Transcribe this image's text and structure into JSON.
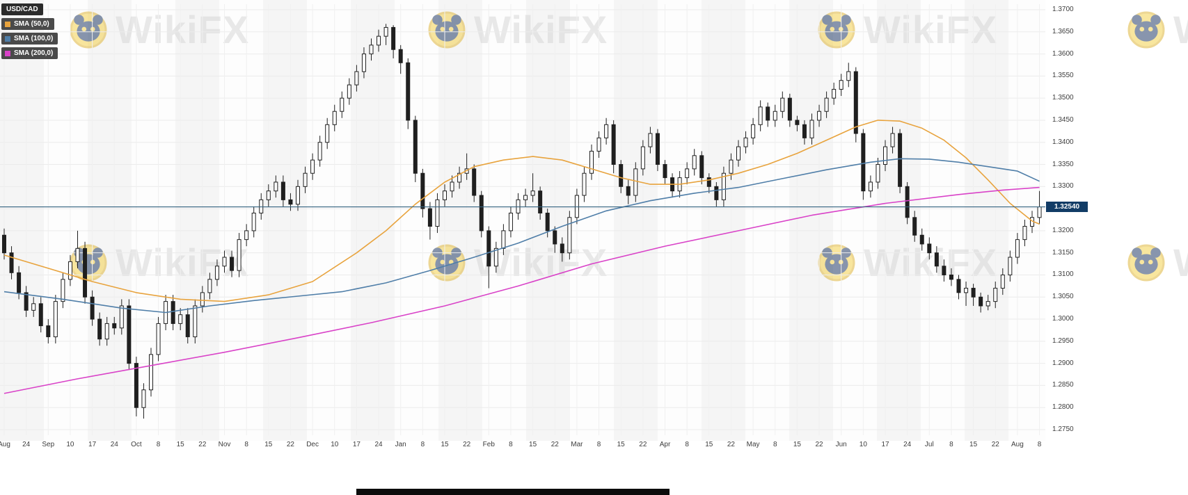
{
  "instrument": {
    "symbol": "USD/CAD"
  },
  "watermark": {
    "text": "WikiFX",
    "logo": "panda-icon"
  },
  "legend": {
    "items": [
      {
        "label": "USD/CAD",
        "color": "#2b2b2b"
      },
      {
        "label": "SMA (50,0)",
        "color": "#e8a33d"
      },
      {
        "label": "SMA (100,0)",
        "color": "#4f7ea8"
      },
      {
        "label": "SMA (200,0)",
        "color": "#d942c8"
      }
    ]
  },
  "price_axis": {
    "ticks": [
      "1.3700",
      "1.3650",
      "1.3600",
      "1.3550",
      "1.3500",
      "1.3450",
      "1.3400",
      "1.3350",
      "1.3300",
      "1.3250",
      "1.3200",
      "1.3150",
      "1.3100",
      "1.3050",
      "1.3000",
      "1.2950",
      "1.2900",
      "1.2850",
      "1.2800",
      "1.2750"
    ],
    "last_price_label": "1.32540"
  },
  "time_axis": {
    "ticks": [
      "Aug",
      "24",
      "Sep",
      "10",
      "17",
      "24",
      "Oct",
      "8",
      "15",
      "22",
      "Nov",
      "8",
      "15",
      "22",
      "Dec",
      "10",
      "17",
      "24",
      "Jan",
      "8",
      "15",
      "22",
      "Feb",
      "8",
      "15",
      "22",
      "Mar",
      "8",
      "15",
      "22",
      "Apr",
      "8",
      "15",
      "22",
      "May",
      "8",
      "15",
      "22",
      "Jun",
      "10",
      "17",
      "24",
      "Jul",
      "8",
      "15",
      "22",
      "Aug",
      "8"
    ]
  },
  "colors": {
    "candle_up_fill": "#ffffff",
    "candle_down_fill": "#1f1f1f",
    "candle_stroke": "#1f1f1f",
    "sma50": "#e8a33d",
    "sma100": "#4f7ea8",
    "sma200": "#d942c8",
    "last_price_line": "#33627f",
    "last_price_badge_bg": "#123c66",
    "grid": "#ebebeb"
  },
  "chart_data": {
    "type": "candlestick",
    "symbol": "USD/CAD",
    "timeframe_hint": "daily, ~1 year (Aug to Aug)",
    "ylim": [
      1.275,
      1.37
    ],
    "grid": true,
    "legend_position": "top-left",
    "last_price": 1.3254,
    "x_tick_labels": [
      "Aug",
      "24",
      "Sep",
      "10",
      "17",
      "24",
      "Oct",
      "8",
      "15",
      "22",
      "Nov",
      "8",
      "15",
      "22",
      "Dec",
      "10",
      "17",
      "24",
      "Jan",
      "8",
      "15",
      "22",
      "Feb",
      "8",
      "15",
      "22",
      "Mar",
      "8",
      "15",
      "22",
      "Apr",
      "8",
      "15",
      "22",
      "May",
      "8",
      "15",
      "22",
      "Jun",
      "10",
      "17",
      "24",
      "Jul",
      "8",
      "15",
      "22",
      "Aug",
      "8"
    ],
    "candles_per_tick": 3,
    "candles": [
      [
        1.319,
        1.3205,
        1.3135,
        1.315
      ],
      [
        1.315,
        1.3165,
        1.309,
        1.3105
      ],
      [
        1.3105,
        1.312,
        1.3045,
        1.306
      ],
      [
        1.306,
        1.3075,
        1.3005,
        1.302
      ],
      [
        1.302,
        1.305,
        1.3005,
        1.3035
      ],
      [
        1.3035,
        1.305,
        1.297,
        1.2985
      ],
      [
        1.2985,
        1.3,
        1.2945,
        1.296
      ],
      [
        1.296,
        1.3055,
        1.2945,
        1.304
      ],
      [
        1.304,
        1.3105,
        1.3025,
        1.309
      ],
      [
        1.309,
        1.3145,
        1.3075,
        1.313
      ],
      [
        1.313,
        1.32,
        1.3115,
        1.316
      ],
      [
        1.316,
        1.3175,
        1.3035,
        1.305
      ],
      [
        1.305,
        1.3065,
        1.2985,
        1.3
      ],
      [
        1.3,
        1.3015,
        1.294,
        1.2955
      ],
      [
        1.2955,
        1.3005,
        1.294,
        1.299
      ],
      [
        1.299,
        1.3005,
        1.2965,
        1.298
      ],
      [
        1.298,
        1.3045,
        1.2965,
        1.303
      ],
      [
        1.303,
        1.3045,
        1.2885,
        1.29
      ],
      [
        1.29,
        1.2915,
        1.278,
        1.28
      ],
      [
        1.28,
        1.2855,
        1.2775,
        1.284
      ],
      [
        1.284,
        1.2935,
        1.2825,
        1.292
      ],
      [
        1.292,
        1.3005,
        1.2905,
        1.299
      ],
      [
        1.299,
        1.3055,
        1.2975,
        1.304
      ],
      [
        1.304,
        1.3055,
        1.2975,
        1.299
      ],
      [
        1.299,
        1.3025,
        1.2975,
        1.301
      ],
      [
        1.301,
        1.3025,
        1.2945,
        1.296
      ],
      [
        1.296,
        1.3045,
        1.2945,
        1.303
      ],
      [
        1.303,
        1.3075,
        1.3015,
        1.306
      ],
      [
        1.306,
        1.3105,
        1.3045,
        1.309
      ],
      [
        1.309,
        1.3135,
        1.3075,
        1.312
      ],
      [
        1.312,
        1.3155,
        1.3105,
        1.314
      ],
      [
        1.314,
        1.3155,
        1.3095,
        1.311
      ],
      [
        1.311,
        1.3195,
        1.3095,
        1.318
      ],
      [
        1.318,
        1.3215,
        1.3165,
        1.32
      ],
      [
        1.32,
        1.3255,
        1.3185,
        1.324
      ],
      [
        1.324,
        1.3285,
        1.3225,
        1.327
      ],
      [
        1.327,
        1.3305,
        1.3255,
        1.329
      ],
      [
        1.329,
        1.3325,
        1.3275,
        1.331
      ],
      [
        1.331,
        1.3325,
        1.3255,
        1.327
      ],
      [
        1.327,
        1.3285,
        1.3245,
        1.326
      ],
      [
        1.326,
        1.3315,
        1.3245,
        1.33
      ],
      [
        1.33,
        1.3345,
        1.3285,
        1.333
      ],
      [
        1.333,
        1.3375,
        1.3315,
        1.336
      ],
      [
        1.336,
        1.3415,
        1.3345,
        1.34
      ],
      [
        1.34,
        1.3455,
        1.3385,
        1.344
      ],
      [
        1.344,
        1.3485,
        1.3425,
        1.347
      ],
      [
        1.347,
        1.3515,
        1.3455,
        1.35
      ],
      [
        1.35,
        1.3545,
        1.3485,
        1.353
      ],
      [
        1.353,
        1.3575,
        1.3515,
        1.356
      ],
      [
        1.356,
        1.3615,
        1.3545,
        1.36
      ],
      [
        1.36,
        1.3635,
        1.3585,
        1.362
      ],
      [
        1.362,
        1.3655,
        1.3605,
        1.364
      ],
      [
        1.364,
        1.3668,
        1.362,
        1.366
      ],
      [
        1.366,
        1.3665,
        1.359,
        1.361
      ],
      [
        1.361,
        1.362,
        1.3555,
        1.358
      ],
      [
        1.358,
        1.359,
        1.343,
        1.345
      ],
      [
        1.345,
        1.346,
        1.331,
        1.333
      ],
      [
        1.333,
        1.334,
        1.323,
        1.325
      ],
      [
        1.325,
        1.3265,
        1.318,
        1.321
      ],
      [
        1.321,
        1.3285,
        1.3195,
        1.327
      ],
      [
        1.327,
        1.3305,
        1.3255,
        1.329
      ],
      [
        1.329,
        1.3325,
        1.3275,
        1.331
      ],
      [
        1.331,
        1.3345,
        1.3295,
        1.333
      ],
      [
        1.333,
        1.3375,
        1.3315,
        1.334
      ],
      [
        1.334,
        1.335,
        1.3265,
        1.328
      ],
      [
        1.328,
        1.329,
        1.3185,
        1.32
      ],
      [
        1.32,
        1.321,
        1.307,
        1.312
      ],
      [
        1.312,
        1.3175,
        1.3105,
        1.316
      ],
      [
        1.316,
        1.3215,
        1.3145,
        1.32
      ],
      [
        1.32,
        1.3255,
        1.3185,
        1.324
      ],
      [
        1.324,
        1.3285,
        1.3225,
        1.327
      ],
      [
        1.327,
        1.3295,
        1.3255,
        1.328
      ],
      [
        1.328,
        1.333,
        1.3265,
        1.329
      ],
      [
        1.329,
        1.33,
        1.3225,
        1.324
      ],
      [
        1.324,
        1.325,
        1.3185,
        1.32
      ],
      [
        1.32,
        1.321,
        1.315,
        1.317
      ],
      [
        1.317,
        1.3185,
        1.313,
        1.315
      ],
      [
        1.315,
        1.3245,
        1.3135,
        1.323
      ],
      [
        1.323,
        1.3295,
        1.3215,
        1.328
      ],
      [
        1.328,
        1.3345,
        1.3265,
        1.333
      ],
      [
        1.333,
        1.3395,
        1.3315,
        1.338
      ],
      [
        1.338,
        1.3425,
        1.3365,
        1.341
      ],
      [
        1.341,
        1.3455,
        1.3395,
        1.344
      ],
      [
        1.344,
        1.345,
        1.333,
        1.335
      ],
      [
        1.335,
        1.336,
        1.3285,
        1.33
      ],
      [
        1.33,
        1.3315,
        1.326,
        1.328
      ],
      [
        1.328,
        1.3355,
        1.3265,
        1.334
      ],
      [
        1.334,
        1.3405,
        1.3325,
        1.339
      ],
      [
        1.339,
        1.3435,
        1.3375,
        1.342
      ],
      [
        1.342,
        1.343,
        1.3335,
        1.335
      ],
      [
        1.335,
        1.336,
        1.3305,
        1.332
      ],
      [
        1.332,
        1.333,
        1.3275,
        1.329
      ],
      [
        1.329,
        1.3335,
        1.3275,
        1.332
      ],
      [
        1.332,
        1.3355,
        1.3305,
        1.334
      ],
      [
        1.334,
        1.3385,
        1.3325,
        1.337
      ],
      [
        1.337,
        1.338,
        1.3305,
        1.332
      ],
      [
        1.332,
        1.333,
        1.3285,
        1.33
      ],
      [
        1.33,
        1.331,
        1.3255,
        1.327
      ],
      [
        1.327,
        1.3345,
        1.3255,
        1.333
      ],
      [
        1.333,
        1.3375,
        1.3315,
        1.336
      ],
      [
        1.336,
        1.3405,
        1.3345,
        1.339
      ],
      [
        1.339,
        1.3425,
        1.3375,
        1.341
      ],
      [
        1.341,
        1.3455,
        1.3395,
        1.344
      ],
      [
        1.344,
        1.3495,
        1.3425,
        1.348
      ],
      [
        1.348,
        1.349,
        1.3435,
        1.345
      ],
      [
        1.345,
        1.3485,
        1.3435,
        1.347
      ],
      [
        1.347,
        1.3515,
        1.3455,
        1.35
      ],
      [
        1.35,
        1.351,
        1.3435,
        1.345
      ],
      [
        1.345,
        1.346,
        1.3425,
        1.344
      ],
      [
        1.344,
        1.345,
        1.3395,
        1.341
      ],
      [
        1.341,
        1.3465,
        1.3395,
        1.345
      ],
      [
        1.345,
        1.3485,
        1.3435,
        1.347
      ],
      [
        1.347,
        1.3515,
        1.3455,
        1.35
      ],
      [
        1.35,
        1.3535,
        1.3485,
        1.352
      ],
      [
        1.352,
        1.3555,
        1.3505,
        1.354
      ],
      [
        1.354,
        1.358,
        1.3525,
        1.356
      ],
      [
        1.356,
        1.357,
        1.34,
        1.342
      ],
      [
        1.342,
        1.343,
        1.327,
        1.329
      ],
      [
        1.329,
        1.3325,
        1.3275,
        1.331
      ],
      [
        1.331,
        1.3365,
        1.3295,
        1.335
      ],
      [
        1.335,
        1.3405,
        1.3335,
        1.339
      ],
      [
        1.339,
        1.3435,
        1.3375,
        1.342
      ],
      [
        1.342,
        1.343,
        1.3285,
        1.33
      ],
      [
        1.33,
        1.331,
        1.3215,
        1.323
      ],
      [
        1.323,
        1.3245,
        1.3175,
        1.319
      ],
      [
        1.319,
        1.3205,
        1.3155,
        1.317
      ],
      [
        1.317,
        1.3185,
        1.3135,
        1.315
      ],
      [
        1.315,
        1.3165,
        1.3105,
        1.312
      ],
      [
        1.312,
        1.3135,
        1.3085,
        1.31
      ],
      [
        1.31,
        1.3115,
        1.3075,
        1.309
      ],
      [
        1.309,
        1.31,
        1.3045,
        1.306
      ],
      [
        1.306,
        1.3085,
        1.303,
        1.307
      ],
      [
        1.307,
        1.308,
        1.303,
        1.305
      ],
      [
        1.305,
        1.306,
        1.3015,
        1.303
      ],
      [
        1.303,
        1.3055,
        1.302,
        1.304
      ],
      [
        1.304,
        1.3085,
        1.3025,
        1.307
      ],
      [
        1.307,
        1.3115,
        1.3055,
        1.31
      ],
      [
        1.31,
        1.3155,
        1.3085,
        1.314
      ],
      [
        1.314,
        1.3195,
        1.3125,
        1.318
      ],
      [
        1.318,
        1.3225,
        1.3165,
        1.321
      ],
      [
        1.321,
        1.3245,
        1.3195,
        1.323
      ],
      [
        1.323,
        1.329,
        1.3215,
        1.3254
      ]
    ],
    "overlays": [
      {
        "name": "SMA (50,0)",
        "color": "#e8a33d",
        "points": [
          [
            0,
            1.3145
          ],
          [
            6,
            1.3115
          ],
          [
            12,
            1.3085
          ],
          [
            18,
            1.306
          ],
          [
            24,
            1.3045
          ],
          [
            30,
            1.304
          ],
          [
            36,
            1.3055
          ],
          [
            42,
            1.3085
          ],
          [
            48,
            1.315
          ],
          [
            52,
            1.32
          ],
          [
            56,
            1.326
          ],
          [
            60,
            1.331
          ],
          [
            64,
            1.3345
          ],
          [
            68,
            1.336
          ],
          [
            72,
            1.3368
          ],
          [
            76,
            1.336
          ],
          [
            80,
            1.334
          ],
          [
            84,
            1.332
          ],
          [
            88,
            1.3305
          ],
          [
            92,
            1.3305
          ],
          [
            96,
            1.3315
          ],
          [
            100,
            1.333
          ],
          [
            104,
            1.335
          ],
          [
            108,
            1.3375
          ],
          [
            112,
            1.3405
          ],
          [
            116,
            1.3435
          ],
          [
            119,
            1.345
          ],
          [
            122,
            1.3448
          ],
          [
            125,
            1.3432
          ],
          [
            128,
            1.3405
          ],
          [
            131,
            1.3365
          ],
          [
            134,
            1.3315
          ],
          [
            137,
            1.3262
          ],
          [
            140,
            1.3222
          ],
          [
            141,
            1.3215
          ]
        ]
      },
      {
        "name": "SMA (100,0)",
        "color": "#4f7ea8",
        "points": [
          [
            0,
            1.3062
          ],
          [
            8,
            1.3045
          ],
          [
            16,
            1.3025
          ],
          [
            22,
            1.3015
          ],
          [
            28,
            1.303
          ],
          [
            34,
            1.3042
          ],
          [
            40,
            1.3052
          ],
          [
            46,
            1.3062
          ],
          [
            52,
            1.3082
          ],
          [
            58,
            1.311
          ],
          [
            64,
            1.314
          ],
          [
            70,
            1.3172
          ],
          [
            76,
            1.321
          ],
          [
            82,
            1.3245
          ],
          [
            88,
            1.3268
          ],
          [
            94,
            1.3285
          ],
          [
            100,
            1.3298
          ],
          [
            106,
            1.3318
          ],
          [
            112,
            1.3338
          ],
          [
            118,
            1.3355
          ],
          [
            122,
            1.3363
          ],
          [
            126,
            1.3362
          ],
          [
            130,
            1.3355
          ],
          [
            134,
            1.3345
          ],
          [
            138,
            1.3335
          ],
          [
            141,
            1.3312
          ]
        ]
      },
      {
        "name": "SMA (200,0)",
        "color": "#d942c8",
        "points": [
          [
            0,
            1.2832
          ],
          [
            10,
            1.2865
          ],
          [
            20,
            1.2895
          ],
          [
            30,
            1.2925
          ],
          [
            40,
            1.2958
          ],
          [
            50,
            1.2992
          ],
          [
            60,
            1.303
          ],
          [
            70,
            1.3075
          ],
          [
            80,
            1.3125
          ],
          [
            90,
            1.3165
          ],
          [
            100,
            1.32
          ],
          [
            110,
            1.3235
          ],
          [
            120,
            1.3262
          ],
          [
            130,
            1.3282
          ],
          [
            136,
            1.3292
          ],
          [
            141,
            1.3298
          ]
        ]
      }
    ]
  }
}
